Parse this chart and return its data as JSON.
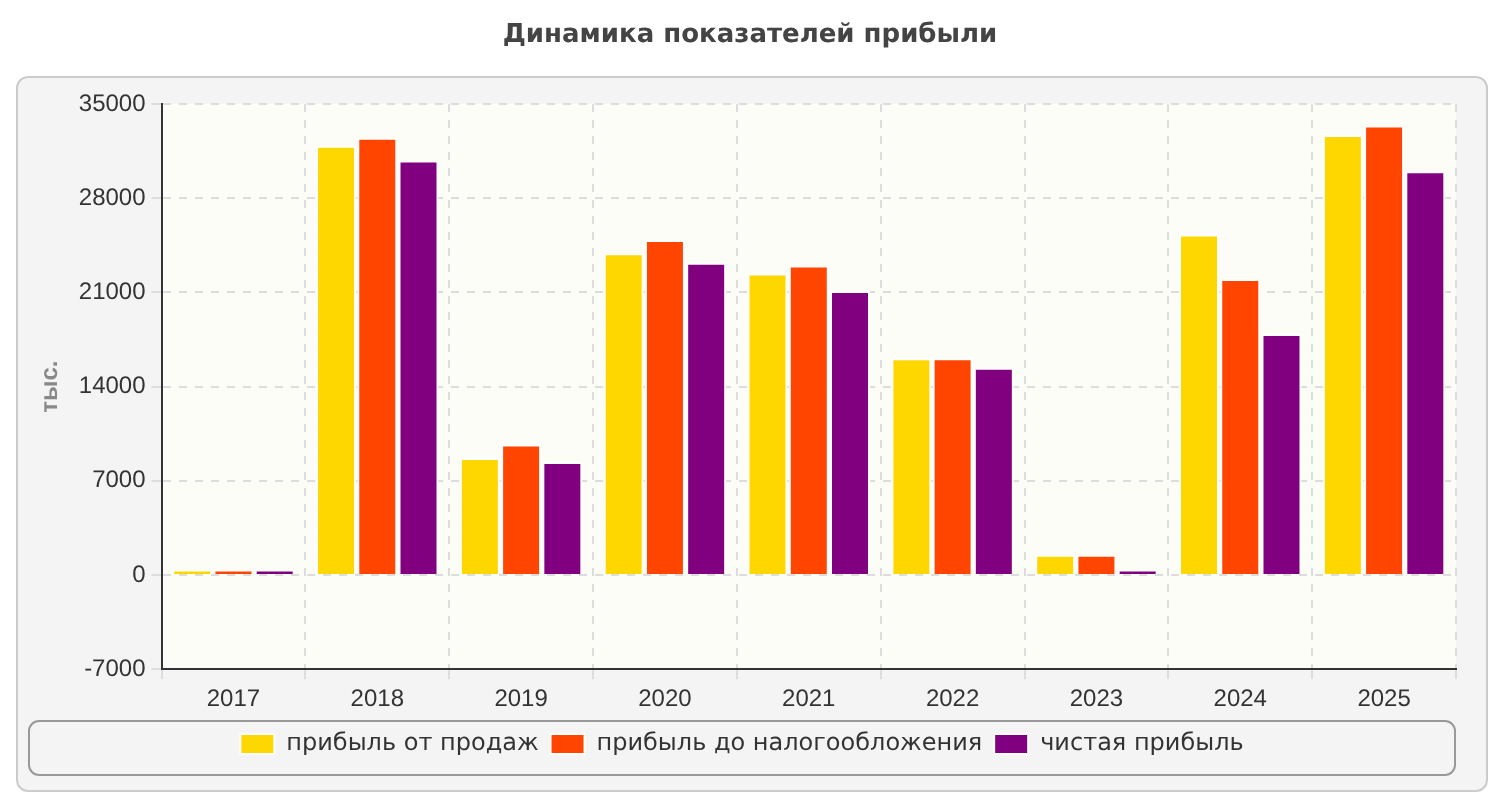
{
  "chart_data": {
    "type": "bar",
    "title": "Динамика показателей прибыли",
    "ylabel": "тыс.",
    "categories": [
      "2017",
      "2018",
      "2019",
      "2020",
      "2021",
      "2022",
      "2023",
      "2024",
      "2025"
    ],
    "series": [
      {
        "name": "прибыль от продаж",
        "color": "#ffd700",
        "values": [
          400,
          31900,
          8700,
          23900,
          22400,
          16100,
          1500,
          25300,
          32700
        ]
      },
      {
        "name": "прибыль до налогообложения",
        "color": "#ff4500",
        "values": [
          400,
          32500,
          9700,
          24900,
          23000,
          16100,
          1500,
          22000,
          33400
        ]
      },
      {
        "name": "чистая прибыль",
        "color": "#800080",
        "values": [
          400,
          30800,
          8400,
          23200,
          21100,
          15400,
          400,
          17900,
          30000
        ]
      }
    ],
    "ylim": [
      -7000,
      35000
    ],
    "yticks": [
      -7000,
      0,
      7000,
      14000,
      21000,
      28000,
      35000
    ],
    "grid": true,
    "legend": "bottom"
  }
}
